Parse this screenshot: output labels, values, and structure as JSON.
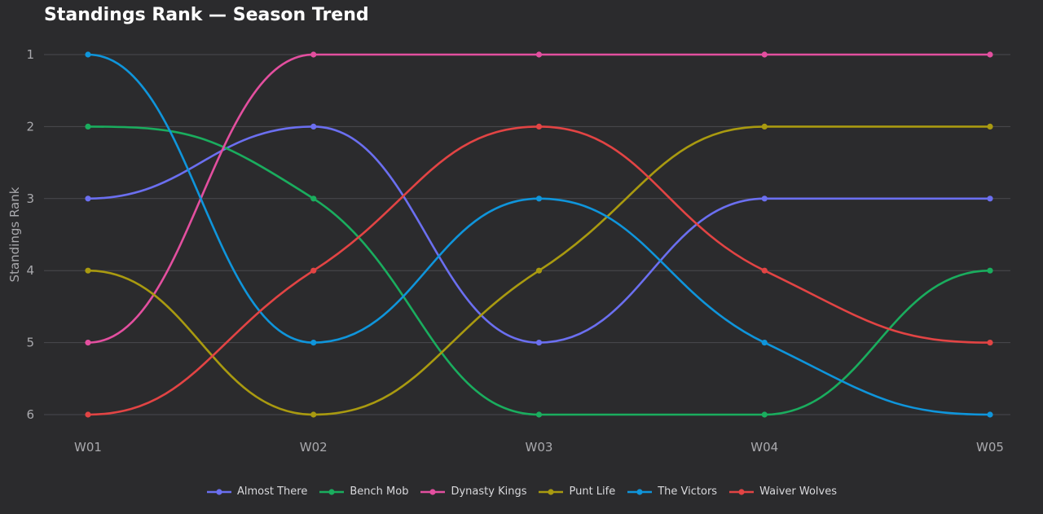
{
  "chart_data": {
    "type": "line",
    "title": "Standings Rank — Season Trend",
    "ylabel": "Standings Rank",
    "xlabel": "",
    "categories": [
      "W01",
      "W02",
      "W03",
      "W04",
      "W05"
    ],
    "y_ticks": [
      "1",
      "2",
      "3",
      "4",
      "5",
      "6"
    ],
    "ylim": [
      1,
      6
    ],
    "y_inverted": true,
    "grid": true,
    "legend_position": "bottom",
    "series": [
      {
        "name": "Almost There",
        "color": "#6b6ff0",
        "values": [
          3,
          2,
          5,
          3,
          3
        ]
      },
      {
        "name": "Bench Mob",
        "color": "#1aad5e",
        "values": [
          2,
          3,
          6,
          6,
          4
        ]
      },
      {
        "name": "Dynasty Kings",
        "color": "#e34f9f",
        "values": [
          5,
          1,
          1,
          1,
          1
        ]
      },
      {
        "name": "Punt Life",
        "color": "#a99a10",
        "values": [
          4,
          6,
          4,
          2,
          2
        ]
      },
      {
        "name": "The Victors",
        "color": "#0f95db",
        "values": [
          1,
          5,
          3,
          5,
          6
        ]
      },
      {
        "name": "Waiver Wolves",
        "color": "#e24444",
        "values": [
          6,
          4,
          2,
          4,
          5
        ]
      }
    ]
  }
}
